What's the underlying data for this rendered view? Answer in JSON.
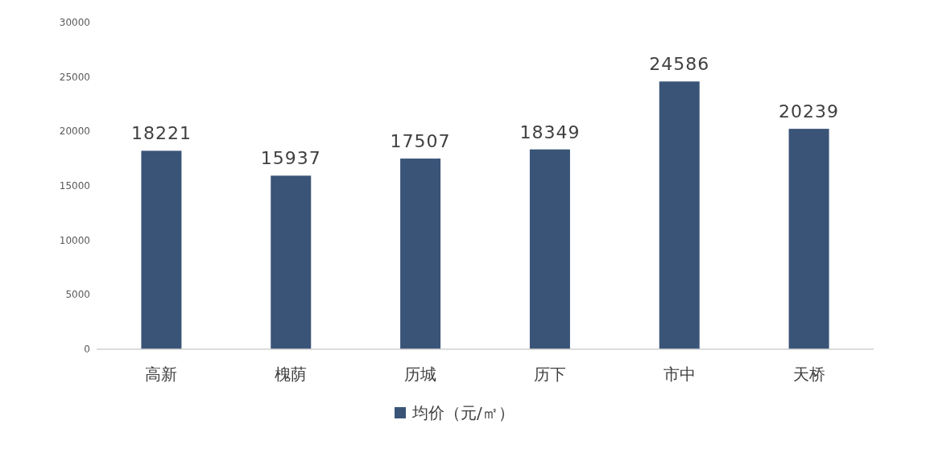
{
  "chart_data": {
    "type": "bar",
    "categories": [
      "高新",
      "槐荫",
      "历城",
      "历下",
      "市中",
      "天桥"
    ],
    "series": [
      {
        "name": "均价（元/㎡）",
        "color": "#3a5478",
        "values": [
          18221,
          15937,
          17507,
          18349,
          24586,
          20239
        ]
      }
    ],
    "ylim": [
      0,
      30000
    ],
    "yticks": [
      0,
      5000,
      10000,
      15000,
      20000,
      25000,
      30000
    ],
    "data_labels": true,
    "legend": "bottom",
    "grid": false
  }
}
